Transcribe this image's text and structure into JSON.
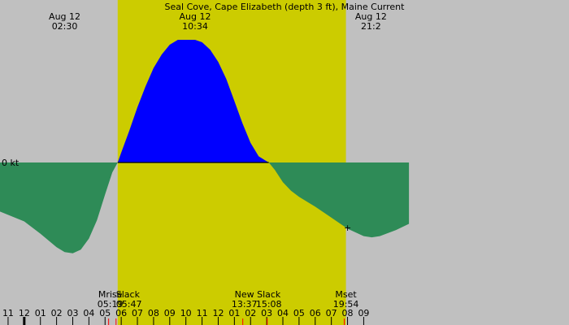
{
  "chart_data": {
    "type": "area",
    "title": "Seal Cove, Cape Elizabeth (depth 3 ft), Maine Current",
    "ylabel": "0 kt",
    "x_unit": "hours",
    "x_range": [
      -1.5,
      33.7
    ],
    "y_range": [
      -1.08,
      1.0
    ],
    "colors": {
      "night": "#c0c0c0",
      "day": "#cccc00",
      "flood": "#0000ff",
      "ebb": "#2e8b57",
      "zero_line": "#000000",
      "tick_red": "#ff0000",
      "tick_black": "#000000"
    },
    "daylight": {
      "start": 5.78,
      "end": 19.9
    },
    "current_curve": {
      "x": [
        -1.5,
        0,
        1,
        2,
        2.5,
        3,
        3.5,
        4,
        4.5,
        5,
        5.45,
        5.78,
        6,
        6.5,
        7,
        7.5,
        8,
        8.5,
        9,
        9.5,
        10,
        10.57,
        11,
        11.5,
        12,
        12.5,
        13,
        13.5,
        14,
        14.5,
        15,
        15.13,
        15.5,
        16,
        16.5,
        17,
        18,
        19,
        20,
        21,
        21.5,
        22,
        23,
        23.8
      ],
      "y": [
        -0.4,
        -0.48,
        -0.58,
        -0.69,
        -0.73,
        -0.74,
        -0.71,
        -0.62,
        -0.47,
        -0.26,
        -0.08,
        0,
        0.08,
        0.26,
        0.45,
        0.62,
        0.77,
        0.88,
        0.96,
        1.0,
        1.0,
        1.0,
        0.98,
        0.92,
        0.82,
        0.68,
        0.5,
        0.32,
        0.16,
        0.05,
        0.01,
        0,
        -0.06,
        -0.16,
        -0.23,
        -0.28,
        -0.36,
        -0.45,
        -0.54,
        -0.6,
        -0.61,
        -0.6,
        -0.55,
        -0.5
      ]
    },
    "top_labels": [
      {
        "line1": "Aug 12",
        "line2": "02:30",
        "x": 2.5
      },
      {
        "line1": "Aug 12",
        "line2": "10:34",
        "x": 10.57
      },
      {
        "line1": "Aug 12",
        "line2": "21:2",
        "x": 21.45
      }
    ],
    "events": [
      {
        "label": "Mrise",
        "time": "05:19",
        "x": 5.32
      },
      {
        "label": "Slack",
        "time": "05:47",
        "x": 5.78
      },
      {
        "label": "New",
        "time": "13:37",
        "x": 13.62
      },
      {
        "label": "Slack",
        "time": "15:08",
        "x": 15.13
      },
      {
        "label": "Mset",
        "time": "19:54",
        "x": 19.9
      }
    ],
    "x_ticks": [
      {
        "label": "11",
        "x": -1.0
      },
      {
        "label": "12",
        "x": 0.0
      },
      {
        "label": "01",
        "x": 1.0
      },
      {
        "label": "02",
        "x": 2.0
      },
      {
        "label": "03",
        "x": 3.0
      },
      {
        "label": "04",
        "x": 4.0
      },
      {
        "label": "05",
        "x": 5.0
      },
      {
        "label": "06",
        "x": 6.0
      },
      {
        "label": "07",
        "x": 7.0
      },
      {
        "label": "08",
        "x": 8.0
      },
      {
        "label": "09",
        "x": 9.0
      },
      {
        "label": "10",
        "x": 10.0
      },
      {
        "label": "11",
        "x": 11.0
      },
      {
        "label": "12",
        "x": 12.0
      },
      {
        "label": "01",
        "x": 13.0
      },
      {
        "label": "02",
        "x": 14.0
      },
      {
        "label": "03",
        "x": 15.0
      },
      {
        "label": "04",
        "x": 16.0
      },
      {
        "label": "05",
        "x": 17.0
      },
      {
        "label": "06",
        "x": 18.0
      },
      {
        "label": "07",
        "x": 19.0
      },
      {
        "label": "08",
        "x": 20.0
      },
      {
        "label": "09",
        "x": 21.0
      }
    ],
    "red_markers": [
      5.32,
      5.78,
      13.62,
      15.13,
      19.9
    ],
    "cursor_mark": {
      "label": "+",
      "x": 20.0,
      "y": -0.53
    }
  }
}
